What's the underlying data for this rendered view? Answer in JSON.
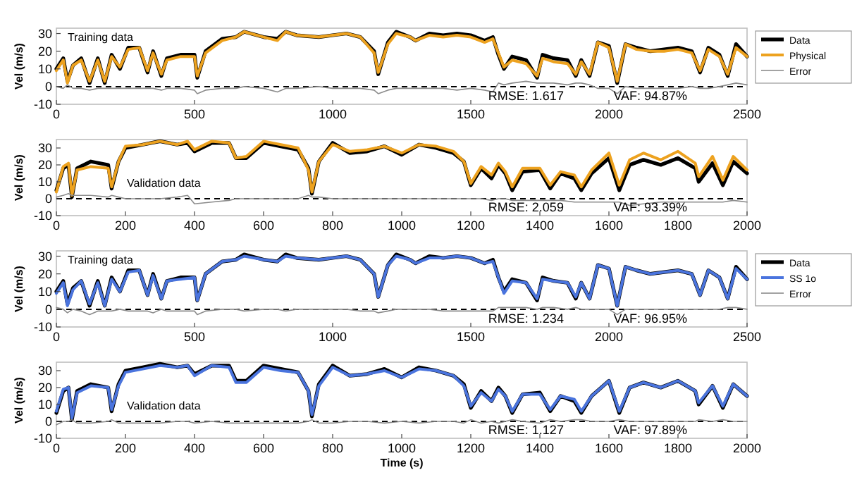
{
  "chart_data": [
    {
      "type": "line",
      "ylabel": "Vel (m/s)",
      "xlim": [
        0,
        2500
      ],
      "xticks": [
        0,
        500,
        1000,
        1500,
        2000,
        2500
      ],
      "ylim": [
        -10,
        33
      ],
      "yticks": [
        -10,
        0,
        10,
        20,
        30
      ],
      "legend": "right",
      "annotations": [
        "Training data",
        "RMSE: 1.617",
        "VAF: 94.87%"
      ],
      "ref_lines": [
        {
          "axis": "y",
          "value": 0,
          "color": "#000000",
          "line_style": "dashed"
        }
      ],
      "x": [
        0,
        25,
        40,
        60,
        90,
        120,
        150,
        175,
        200,
        230,
        260,
        300,
        330,
        350,
        380,
        400,
        450,
        500,
        510,
        540,
        600,
        650,
        680,
        750,
        800,
        830,
        870,
        950,
        1000,
        1050,
        1100,
        1150,
        1165,
        1200,
        1230,
        1280,
        1300,
        1350,
        1400,
        1450,
        1500,
        1550,
        1580,
        1600,
        1620,
        1650,
        1700,
        1740,
        1760,
        1800,
        1850,
        1880,
        1900,
        1930,
        1960,
        2000,
        2030,
        2060,
        2100,
        2150,
        2200,
        2250,
        2300,
        2330,
        2360,
        2400,
        2430,
        2460,
        2500
      ],
      "series": [
        {
          "name": "Data",
          "color": "#000000",
          "values": [
            10,
            16,
            3,
            12,
            16,
            2,
            16,
            2,
            18,
            10,
            22,
            22,
            8,
            20,
            6,
            16,
            18,
            18,
            5,
            20,
            27,
            28,
            31,
            28,
            27,
            31,
            29,
            28,
            29,
            30,
            28,
            20,
            7,
            25,
            31,
            28,
            26,
            30,
            29,
            30,
            29,
            26,
            28,
            18,
            10,
            17,
            15,
            5,
            18,
            16,
            15,
            6,
            15,
            6,
            25,
            23,
            2,
            24,
            22,
            20,
            21,
            22,
            20,
            8,
            22,
            18,
            6,
            24,
            17
          ]
        },
        {
          "name": "Physical",
          "color": "#eda21f",
          "values": [
            9,
            15,
            2,
            12,
            15,
            3,
            15,
            3,
            17,
            11,
            21,
            22,
            9,
            19,
            7,
            15,
            17,
            17,
            6,
            19,
            26,
            28,
            31,
            28,
            26,
            31,
            29,
            28,
            29,
            30,
            28,
            19,
            8,
            24,
            30,
            28,
            26,
            29,
            28,
            29,
            28,
            25,
            27,
            19,
            11,
            15,
            13,
            6,
            16,
            14,
            13,
            7,
            14,
            7,
            25,
            22,
            3,
            24,
            21,
            20,
            20,
            21,
            19,
            9,
            21,
            17,
            7,
            22,
            17
          ]
        },
        {
          "name": "Error",
          "color": "#8c8c8c",
          "values": [
            0,
            -1,
            1,
            -1,
            -1,
            -2,
            -1,
            -1,
            -1,
            -1,
            -1,
            -1,
            -1,
            -1,
            -2,
            -1,
            -1,
            -2,
            -4,
            -2,
            -1,
            -1,
            0,
            -1,
            -3,
            -1,
            -1,
            0,
            -1,
            -1,
            -1,
            -2,
            -4,
            -2,
            -1,
            -1,
            -1,
            -1,
            -1,
            -2,
            -1,
            -2,
            -3,
            2,
            1,
            2,
            3,
            2,
            2,
            2,
            1,
            2,
            2,
            1,
            -1,
            -1,
            -4,
            0,
            -1,
            -1,
            -1,
            -1,
            0,
            -1,
            -1,
            0,
            1,
            2,
            1
          ]
        }
      ]
    },
    {
      "type": "line",
      "ylabel": "Vel (m/s)",
      "xlim": [
        0,
        2000
      ],
      "xticks": [
        0,
        200,
        400,
        600,
        800,
        1000,
        1200,
        1400,
        1600,
        1800,
        2000
      ],
      "ylim": [
        -10,
        35
      ],
      "yticks": [
        -10,
        0,
        10,
        20,
        30
      ],
      "annotations": [
        "Validation data",
        "RMSE: 2.059",
        "VAF: 93.39%"
      ],
      "ref_lines": [
        {
          "axis": "y",
          "value": 0,
          "color": "#000000",
          "line_style": "dashed"
        }
      ],
      "x": [
        0,
        20,
        35,
        45,
        60,
        100,
        150,
        160,
        180,
        200,
        250,
        300,
        350,
        380,
        400,
        450,
        500,
        520,
        550,
        600,
        650,
        700,
        730,
        740,
        760,
        800,
        850,
        900,
        950,
        1000,
        1050,
        1100,
        1150,
        1180,
        1200,
        1230,
        1260,
        1280,
        1300,
        1320,
        1350,
        1400,
        1430,
        1460,
        1500,
        1520,
        1550,
        1600,
        1630,
        1660,
        1700,
        1750,
        1800,
        1850,
        1860,
        1900,
        1930,
        1960,
        2000
      ],
      "series": [
        {
          "color": "#000000",
          "values": [
            5,
            18,
            20,
            1,
            18,
            22,
            20,
            6,
            22,
            30,
            32,
            34,
            32,
            33,
            28,
            33,
            33,
            24,
            24,
            33,
            31,
            29,
            18,
            3,
            22,
            33,
            27,
            28,
            31,
            26,
            32,
            30,
            27,
            22,
            8,
            18,
            12,
            20,
            15,
            5,
            16,
            17,
            6,
            15,
            12,
            5,
            15,
            24,
            5,
            20,
            23,
            20,
            24,
            18,
            10,
            21,
            8,
            22,
            15
          ]
        },
        {
          "color": "#eda21f",
          "values": [
            4,
            19,
            21,
            2,
            17,
            19,
            18,
            7,
            22,
            31,
            32,
            34,
            32,
            34,
            29,
            34,
            33,
            24,
            25,
            34,
            32,
            30,
            17,
            4,
            22,
            32,
            28,
            29,
            31,
            27,
            32,
            31,
            28,
            22,
            9,
            19,
            14,
            21,
            16,
            7,
            18,
            18,
            8,
            16,
            14,
            7,
            17,
            27,
            8,
            23,
            27,
            23,
            28,
            21,
            13,
            25,
            11,
            25,
            17
          ]
        },
        {
          "color": "#8c8c8c",
          "values": [
            1,
            2,
            3,
            2,
            2,
            2,
            1,
            2,
            1,
            0,
            0,
            0,
            1,
            2,
            -3,
            -2,
            -1,
            0,
            0,
            0,
            0,
            0,
            2,
            1,
            1,
            0,
            0,
            0,
            0,
            0,
            0,
            0,
            0,
            0,
            0,
            0,
            -1,
            0,
            0,
            -1,
            -1,
            -1,
            -1,
            -1,
            -2,
            -2,
            -2,
            -2,
            -2,
            -4,
            -3,
            -2,
            -2,
            -2,
            -2,
            -2,
            -2,
            -1,
            -2
          ]
        }
      ]
    },
    {
      "type": "line",
      "ylabel": "Vel (m/s)",
      "xlim": [
        0,
        2500
      ],
      "xticks": [
        0,
        500,
        1000,
        1500,
        2000,
        2500
      ],
      "ylim": [
        -10,
        33
      ],
      "yticks": [
        -10,
        0,
        10,
        20,
        30
      ],
      "legend": "right",
      "annotations": [
        "Training data",
        "RMSE: 1.234",
        "VAF: 96.95%"
      ],
      "ref_lines": [
        {
          "axis": "y",
          "value": 0,
          "color": "#000000",
          "line_style": "dashed"
        }
      ],
      "x": [
        0,
        25,
        40,
        60,
        90,
        120,
        150,
        175,
        200,
        230,
        260,
        300,
        330,
        350,
        380,
        400,
        450,
        500,
        510,
        540,
        600,
        650,
        680,
        750,
        800,
        830,
        870,
        950,
        1000,
        1050,
        1100,
        1150,
        1165,
        1200,
        1230,
        1280,
        1300,
        1350,
        1400,
        1450,
        1500,
        1550,
        1580,
        1600,
        1620,
        1650,
        1700,
        1740,
        1760,
        1800,
        1850,
        1880,
        1900,
        1930,
        1960,
        2000,
        2030,
        2060,
        2100,
        2150,
        2200,
        2250,
        2300,
        2330,
        2360,
        2400,
        2430,
        2460,
        2500
      ],
      "series": [
        {
          "name": "Data",
          "color": "#000000",
          "values": [
            10,
            16,
            3,
            12,
            16,
            2,
            16,
            2,
            18,
            10,
            22,
            22,
            8,
            20,
            6,
            16,
            18,
            18,
            5,
            20,
            27,
            28,
            31,
            28,
            27,
            31,
            29,
            28,
            29,
            30,
            28,
            20,
            7,
            25,
            31,
            28,
            26,
            30,
            29,
            30,
            29,
            26,
            28,
            18,
            10,
            17,
            15,
            5,
            18,
            16,
            15,
            6,
            15,
            6,
            25,
            23,
            2,
            24,
            22,
            20,
            21,
            22,
            20,
            8,
            22,
            18,
            6,
            24,
            17
          ]
        },
        {
          "name": "SS 1o",
          "color": "#4a74de",
          "values": [
            9,
            15,
            2,
            11,
            16,
            3,
            15,
            2,
            17,
            10,
            21,
            22,
            8,
            19,
            6,
            16,
            17,
            18,
            5,
            20,
            27,
            28,
            30,
            28,
            27,
            30,
            29,
            28,
            29,
            30,
            28,
            20,
            7,
            25,
            30,
            28,
            26,
            29,
            29,
            30,
            29,
            26,
            27,
            18,
            9,
            16,
            15,
            6,
            17,
            16,
            15,
            7,
            15,
            6,
            25,
            23,
            2,
            24,
            22,
            20,
            21,
            22,
            20,
            8,
            22,
            18,
            6,
            23,
            17
          ]
        },
        {
          "name": "Error",
          "color": "#8c8c8c",
          "values": [
            1,
            0,
            -2,
            0,
            -1,
            -3,
            -1,
            -1,
            -1,
            0,
            -1,
            -1,
            -1,
            -2,
            0,
            -1,
            -1,
            -1,
            -3,
            -1,
            0,
            0,
            -1,
            0,
            0,
            -1,
            0,
            0,
            0,
            0,
            -1,
            -1,
            -2,
            -1,
            0,
            0,
            0,
            0,
            -1,
            -1,
            -1,
            -1,
            -1,
            1,
            1,
            1,
            1,
            0,
            1,
            1,
            0,
            1,
            0,
            0,
            0,
            0,
            -3,
            0,
            0,
            0,
            0,
            0,
            0,
            0,
            0,
            0,
            1,
            1,
            0
          ]
        }
      ]
    },
    {
      "type": "line",
      "ylabel": "Vel (m/s)",
      "xlabel": "Time (s)",
      "xlim": [
        0,
        2000
      ],
      "xticks": [
        0,
        200,
        400,
        600,
        800,
        1000,
        1200,
        1400,
        1600,
        1800,
        2000
      ],
      "ylim": [
        -10,
        35
      ],
      "yticks": [
        -10,
        0,
        10,
        20,
        30
      ],
      "annotations": [
        "Validation data",
        "RMSE: 1.127",
        "VAF: 97.89%"
      ],
      "ref_lines": [
        {
          "axis": "y",
          "value": 0,
          "color": "#000000",
          "line_style": "dashed"
        }
      ],
      "x": [
        0,
        20,
        35,
        45,
        60,
        100,
        150,
        160,
        180,
        200,
        250,
        300,
        350,
        380,
        400,
        450,
        500,
        520,
        550,
        600,
        650,
        700,
        730,
        740,
        760,
        800,
        850,
        900,
        950,
        1000,
        1050,
        1100,
        1150,
        1180,
        1200,
        1230,
        1260,
        1280,
        1300,
        1320,
        1350,
        1400,
        1430,
        1460,
        1500,
        1520,
        1550,
        1600,
        1630,
        1660,
        1700,
        1750,
        1800,
        1850,
        1860,
        1900,
        1930,
        1960,
        2000
      ],
      "series": [
        {
          "color": "#000000",
          "values": [
            5,
            18,
            20,
            1,
            18,
            22,
            20,
            6,
            22,
            30,
            32,
            34,
            32,
            33,
            28,
            33,
            33,
            24,
            24,
            33,
            31,
            29,
            18,
            3,
            22,
            33,
            27,
            28,
            31,
            26,
            32,
            30,
            27,
            22,
            8,
            18,
            12,
            20,
            15,
            5,
            16,
            17,
            6,
            15,
            12,
            5,
            15,
            24,
            5,
            20,
            23,
            20,
            24,
            18,
            10,
            21,
            8,
            22,
            15
          ]
        },
        {
          "color": "#4a74de",
          "values": [
            6,
            19,
            20,
            2,
            17,
            21,
            20,
            7,
            21,
            29,
            31,
            33,
            32,
            33,
            27,
            33,
            32,
            23,
            23,
            32,
            30,
            29,
            18,
            4,
            21,
            32,
            27,
            28,
            30,
            26,
            31,
            30,
            27,
            21,
            9,
            17,
            12,
            19,
            15,
            6,
            16,
            16,
            7,
            15,
            13,
            6,
            15,
            24,
            6,
            20,
            23,
            20,
            24,
            18,
            11,
            21,
            9,
            22,
            15
          ]
        },
        {
          "color": "#8c8c8c",
          "values": [
            -2,
            0,
            0,
            1,
            -1,
            -1,
            0,
            1,
            -1,
            -1,
            -1,
            -1,
            0,
            0,
            -1,
            0,
            -1,
            -1,
            -1,
            -1,
            -1,
            -1,
            0,
            1,
            -1,
            -1,
            0,
            0,
            -1,
            0,
            -1,
            0,
            0,
            -1,
            1,
            -1,
            0,
            -1,
            0,
            1,
            0,
            -1,
            1,
            0,
            1,
            1,
            0,
            0,
            1,
            0,
            0,
            0,
            0,
            0,
            1,
            0,
            1,
            0,
            0
          ]
        }
      ]
    }
  ]
}
